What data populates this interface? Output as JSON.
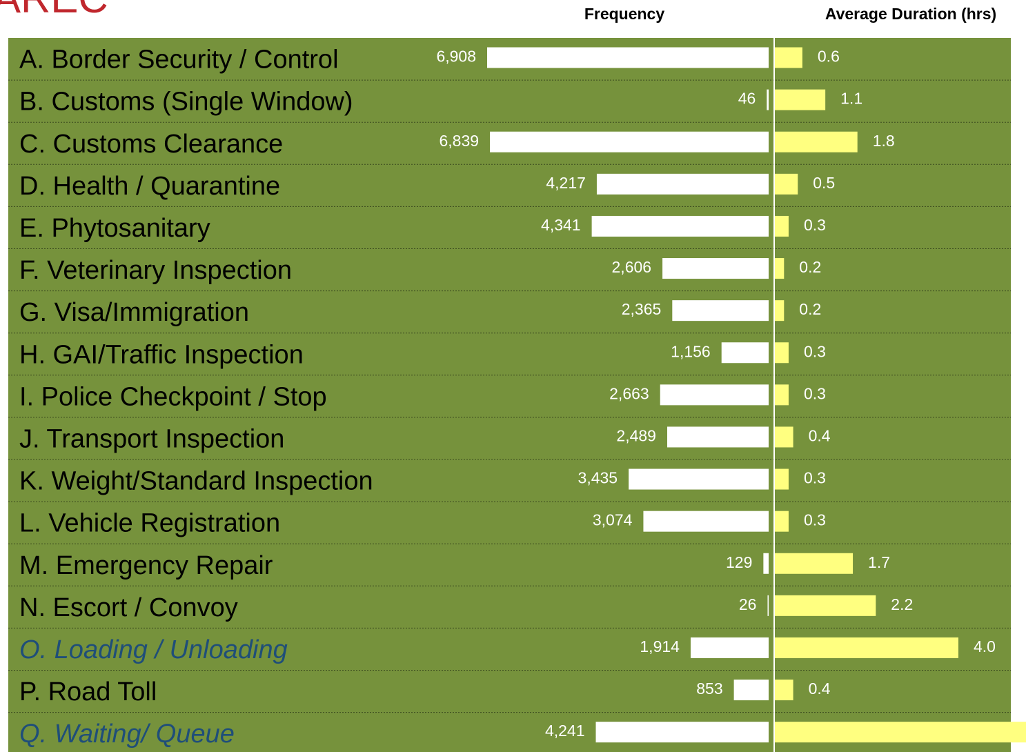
{
  "logo": "AREC",
  "chart_data": {
    "type": "bar",
    "orientation": "horizontal",
    "categories": [
      "A. Border Security / Control",
      "B. Customs (Single Window)",
      "C. Customs Clearance",
      "D. Health / Quarantine",
      "E. Phytosanitary",
      "F. Veterinary Inspection",
      "G. Visa/Immigration",
      "H. GAI/Traffic Inspection",
      "I. Police Checkpoint / Stop",
      "J. Transport Inspection",
      "K. Weight/Standard Inspection",
      "L. Vehicle Registration",
      "M. Emergency Repair",
      "N. Escort / Convoy",
      "O. Loading / Unloading",
      "P. Road Toll",
      "Q. Waiting/ Queue"
    ],
    "highlighted": [
      14,
      16
    ],
    "background": "#76923c",
    "series": [
      {
        "name": "Frequency",
        "color": "#ffffff",
        "values": [
          6908,
          46,
          6839,
          4217,
          4341,
          2606,
          2365,
          1156,
          2663,
          2489,
          3435,
          3074,
          129,
          26,
          1914,
          853,
          4241
        ],
        "value_labels": [
          "6,908",
          "46",
          "6,839",
          "4,217",
          "4,341",
          "2,606",
          "2,365",
          "1,156",
          "2,663",
          "2,489",
          "3,435",
          "3,074",
          "129",
          "26",
          "1,914",
          "853",
          "4,241"
        ]
      },
      {
        "name": "Average Duration (hrs)",
        "color": "#ffff80",
        "values": [
          0.6,
          1.1,
          1.8,
          0.5,
          0.3,
          0.2,
          0.2,
          0.3,
          0.3,
          0.4,
          0.3,
          0.3,
          1.7,
          2.2,
          4.0,
          0.4,
          5.6
        ],
        "value_labels": [
          "0.6",
          "1.1",
          "1.8",
          "0.5",
          "0.3",
          "0.2",
          "0.2",
          "0.3",
          "0.3",
          "0.4",
          "0.3",
          "0.3",
          "1.7",
          "2.2",
          "4.0",
          "0.4",
          null
        ]
      }
    ]
  }
}
